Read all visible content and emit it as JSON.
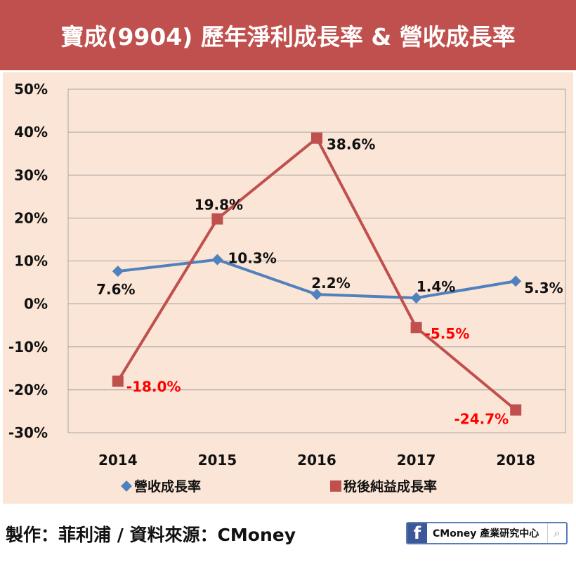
{
  "chart_data": {
    "type": "line",
    "title": "寶成(9904) 歷年淨利成長率 & 營收成長率",
    "categories": [
      "2014",
      "2015",
      "2016",
      "2017",
      "2018"
    ],
    "ylim": [
      -30,
      50
    ],
    "yticks": [
      50,
      40,
      30,
      20,
      10,
      0,
      -10,
      -20,
      -30
    ],
    "ytick_labels": [
      "50%",
      "40%",
      "30%",
      "20%",
      "10%",
      "0%",
      "-10%",
      "-20%",
      "-30%"
    ],
    "grid": true,
    "legend_position": "bottom",
    "series": [
      {
        "name": "營收成長率",
        "color": "#4f81bd",
        "marker": "diamond",
        "values": [
          7.6,
          10.3,
          2.2,
          1.4,
          5.3
        ],
        "labels": [
          "7.6%",
          "10.3%",
          "2.2%",
          "1.4%",
          "5.3%"
        ]
      },
      {
        "name": "稅後純益成長率",
        "color": "#c0504d",
        "marker": "square",
        "values": [
          -18.0,
          19.8,
          38.6,
          -5.5,
          -24.7
        ],
        "labels": [
          "-18.0%",
          "19.8%",
          "38.6%",
          "-5.5%",
          "-24.7%"
        ]
      }
    ],
    "negative_label_color": "#ff0000"
  },
  "footer": {
    "credit": "製作：菲利浦 / 資料來源：CMoney",
    "logo_text": "CMoney 產業研究中心",
    "logo_f": "f",
    "search_icon": "⌕"
  }
}
